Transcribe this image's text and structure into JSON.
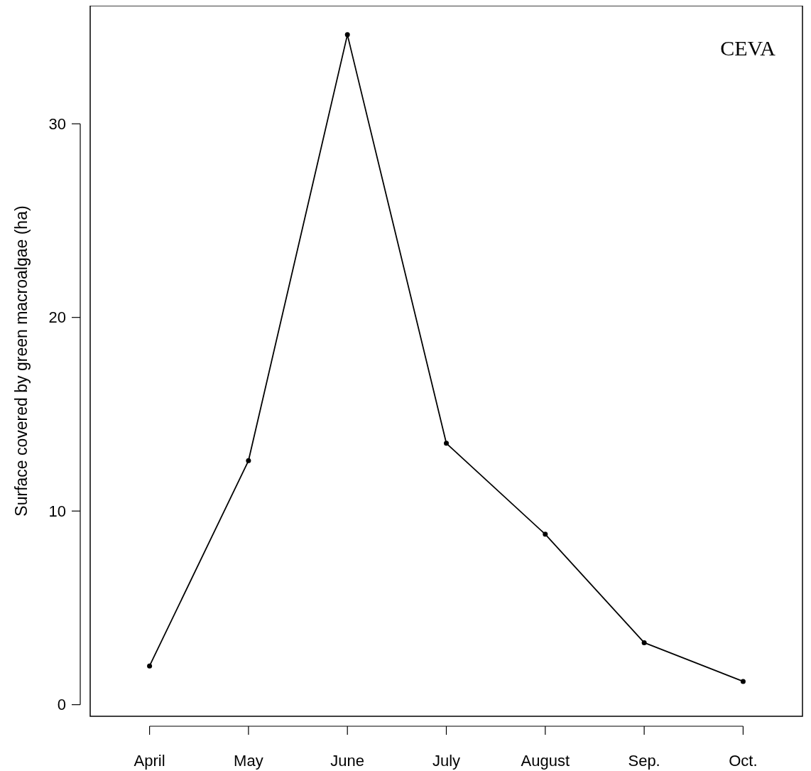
{
  "chart_data": {
    "type": "line",
    "ylabel": "Surface covered by green macroalgae (ha)",
    "categories": [
      "April",
      "May",
      "June",
      "July",
      "August",
      "Sep.",
      "Oct."
    ],
    "series": [
      {
        "color": "#000000",
        "values": [
          2.0,
          12.6,
          34.6,
          13.5,
          8.8,
          3.2,
          1.2
        ]
      }
    ],
    "ylim": [
      -0.6,
      36.1
    ],
    "yticks": [
      0,
      10,
      20,
      30
    ],
    "marker": "circle",
    "line_style": "solid",
    "annotations": [
      "CEVA"
    ]
  }
}
